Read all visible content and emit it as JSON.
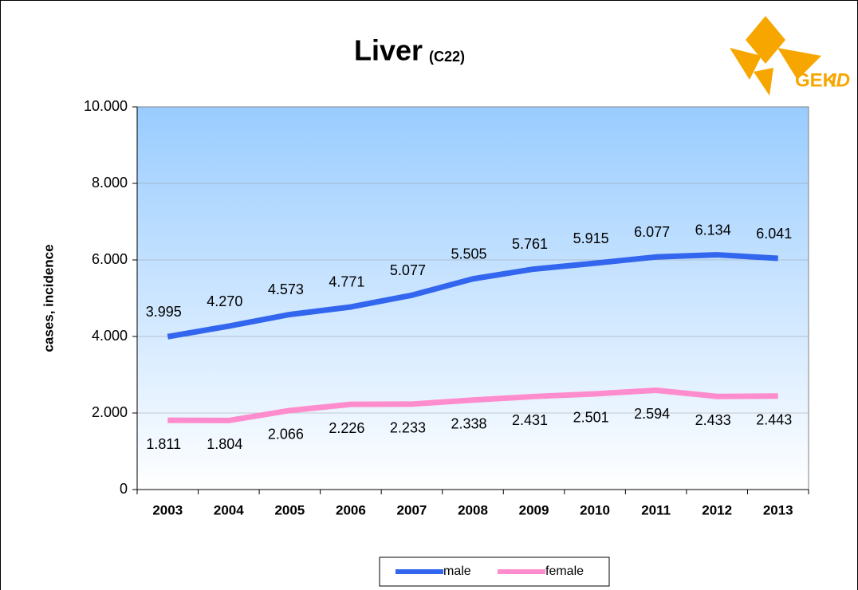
{
  "chart_data": {
    "type": "line",
    "title": "Liver",
    "title_code": "(C22)",
    "logo": {
      "text": "GEK",
      "text_italic": "ID"
    },
    "y_label": "cases, incidence",
    "categories": [
      "2003",
      "2004",
      "2005",
      "2006",
      "2007",
      "2008",
      "2009",
      "2010",
      "2011",
      "2012",
      "2013"
    ],
    "series": [
      {
        "name": "male",
        "color": "#3366ee",
        "values": [
          3995,
          4270,
          4573,
          4771,
          5077,
          5505,
          5761,
          5915,
          6077,
          6134,
          6041
        ],
        "value_labels": [
          "3.995",
          "4.270",
          "4.573",
          "4.771",
          "5.077",
          "5.505",
          "5.761",
          "5.915",
          "6.077",
          "6.134",
          "6.041"
        ]
      },
      {
        "name": "female",
        "color": "#ff8ccc",
        "values": [
          1811,
          1804,
          2066,
          2226,
          2233,
          2338,
          2431,
          2501,
          2594,
          2433,
          2443
        ],
        "value_labels": [
          "1.811",
          "1.804",
          "2.066",
          "2.226",
          "2.233",
          "2.338",
          "2.431",
          "2.501",
          "2.594",
          "2.433",
          "2.443"
        ]
      }
    ],
    "ylim": [
      0,
      10000
    ],
    "yticks": [
      0,
      {
        "value": 2000,
        "label": "2.000"
      },
      {
        "value": 4000,
        "label": "4.000"
      },
      {
        "value": 6000,
        "label": "6.000"
      },
      {
        "value": 8000,
        "label": "8.000"
      },
      {
        "value": 10000,
        "label": "10.000"
      }
    ],
    "grid": true
  }
}
